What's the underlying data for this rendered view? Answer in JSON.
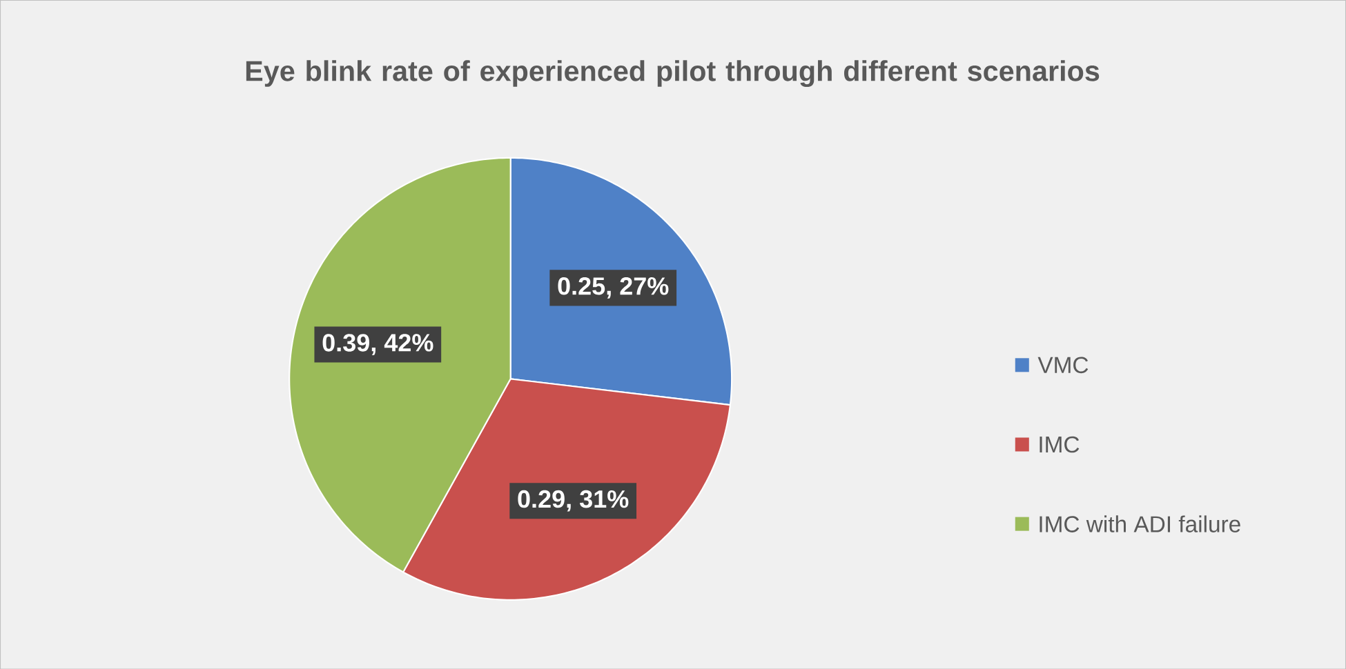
{
  "chart_data": {
    "type": "pie",
    "title": "Eye blink rate of experienced pilot through different scenarios",
    "categories": [
      "VMC",
      "IMC",
      "IMC with ADI failure"
    ],
    "values": [
      0.25,
      0.29,
      0.39
    ],
    "colors": [
      "#4f81c7",
      "#c9504d",
      "#9bbb59"
    ],
    "value_labels": [
      "0.25, 27%",
      "0.29, 31%",
      "0.39, 42%"
    ],
    "legend": "right"
  }
}
